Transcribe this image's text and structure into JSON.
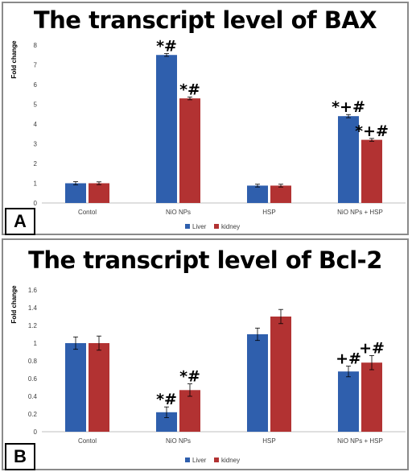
{
  "series_colors": {
    "Liver": "#2f5fad",
    "kidney": "#b23232"
  },
  "chart_data": [
    {
      "panel_label": "A",
      "type": "bar",
      "title": "The transcript level of BAX",
      "ylabel": "Fold change",
      "xlabel": "",
      "ylim": [
        0,
        8
      ],
      "yticks": [
        "0",
        "1",
        "2",
        "3",
        "4",
        "5",
        "6",
        "7",
        "8"
      ],
      "categories": [
        "Contol",
        "NiO NPs",
        "HSP",
        "NiO NPs + HSP"
      ],
      "series": [
        {
          "name": "Liver",
          "values": [
            1.0,
            7.5,
            0.88,
            4.4
          ],
          "errors": [
            0.08,
            0.07,
            0.07,
            0.08
          ],
          "labels": [
            "",
            "*#",
            "",
            "*+#"
          ]
        },
        {
          "name": "kidney",
          "values": [
            1.0,
            5.3,
            0.88,
            3.2
          ],
          "errors": [
            0.07,
            0.07,
            0.07,
            0.07
          ],
          "labels": [
            "",
            "*#",
            "",
            "*+#"
          ]
        }
      ],
      "legend": "bottom-center",
      "grid": false
    },
    {
      "panel_label": "B",
      "type": "bar",
      "title": "The transcript level of Bcl-2",
      "ylabel": "Fold change",
      "xlabel": "",
      "ylim": [
        0,
        1.6
      ],
      "yticks": [
        "0",
        "0.2",
        "0.4",
        "0.6",
        "0.8",
        "1",
        "1.2",
        "1.4",
        "1.6"
      ],
      "categories": [
        "Contol",
        "NiO NPs",
        "HSP",
        "NiO NPs + HSP"
      ],
      "series": [
        {
          "name": "Liver",
          "values": [
            1.0,
            0.22,
            1.1,
            0.68
          ],
          "errors": [
            0.07,
            0.06,
            0.07,
            0.06
          ],
          "labels": [
            "",
            "*#",
            "",
            "+#"
          ]
        },
        {
          "name": "kidney",
          "values": [
            1.0,
            0.47,
            1.3,
            0.78
          ],
          "errors": [
            0.08,
            0.07,
            0.08,
            0.08
          ],
          "labels": [
            "",
            "*#",
            "",
            "+#"
          ]
        }
      ],
      "legend": "bottom-center",
      "grid": false
    }
  ]
}
